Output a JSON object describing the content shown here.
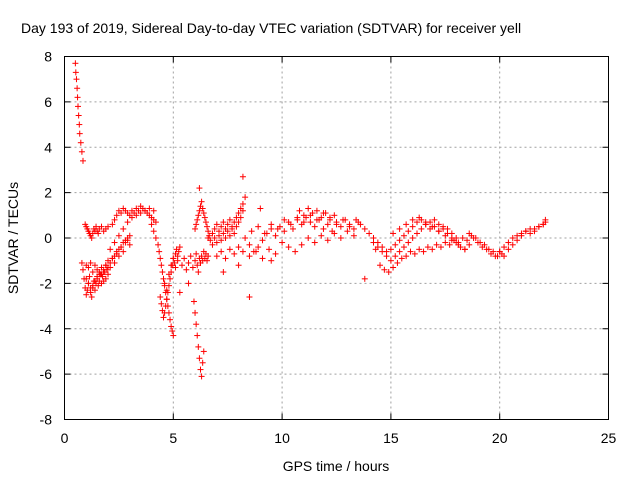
{
  "chart_data": {
    "type": "scatter",
    "title": "Day 193 of 2019, Sidereal Day-to-day VTEC variation (SDTVAR) for receiver yell",
    "xlabel": "GPS time / hours",
    "ylabel": "SDTVAR / TECUs",
    "xlim": [
      0,
      25
    ],
    "ylim": [
      -8,
      8
    ],
    "xticks": [
      "0",
      "5",
      "10",
      "15",
      "20",
      "25"
    ],
    "yticks": [
      "-8",
      "-6",
      "-4",
      "-2",
      "0",
      "2",
      "4",
      "6",
      "8"
    ],
    "grid": true,
    "marker": "plus",
    "marker_color": "#ff0000",
    "series": [
      {
        "name": "SDTVAR",
        "x": [
          0.5,
          0.52,
          0.55,
          0.58,
          0.6,
          0.62,
          0.65,
          0.68,
          0.7,
          0.75,
          0.8,
          0.85,
          0.8,
          0.85,
          0.9,
          0.95,
          1.0,
          1.05,
          1.1,
          1.15,
          1.2,
          1.25,
          1.3,
          1.35,
          1.4,
          1.45,
          1.5,
          1.55,
          1.6,
          1.65,
          1.7,
          1.75,
          1.8,
          1.85,
          1.9,
          1.95,
          2.0,
          1.0,
          1.1,
          1.2,
          1.3,
          1.4,
          1.5,
          1.6,
          1.7,
          1.8,
          1.9,
          2.0,
          2.1,
          2.2,
          2.3,
          2.4,
          2.5,
          2.6,
          2.7,
          2.8,
          2.9,
          3.0,
          1.0,
          1.1,
          1.2,
          1.3,
          1.4,
          1.5,
          1.6,
          1.7,
          1.8,
          1.9,
          2.0,
          2.1,
          2.2,
          2.3,
          2.4,
          2.5,
          2.6,
          2.7,
          2.8,
          2.9,
          3.0,
          0.95,
          1.0,
          1.05,
          1.1,
          1.15,
          1.2,
          1.25,
          1.3,
          1.35,
          1.4,
          1.45,
          1.5,
          1.55,
          1.6,
          1.7,
          1.8,
          1.9,
          2.0,
          2.2,
          2.3,
          2.4,
          2.5,
          2.6,
          2.7,
          2.8,
          2.9,
          3.0,
          3.1,
          3.2,
          3.3,
          3.4,
          3.5,
          3.6,
          3.7,
          3.8,
          3.9,
          4.0,
          4.1,
          4.2,
          2.1,
          2.3,
          2.5,
          2.7,
          2.9,
          3.1,
          3.3,
          3.5,
          3.7,
          3.9,
          4.1,
          4.0,
          4.1,
          4.2,
          4.3,
          4.35,
          4.4,
          4.45,
          4.5,
          4.55,
          4.6,
          4.65,
          4.7,
          4.75,
          4.8,
          4.85,
          4.9,
          4.95,
          5.0,
          4.4,
          4.45,
          4.5,
          4.55,
          4.6,
          4.65,
          4.7,
          4.75,
          4.8,
          4.85,
          4.9,
          4.95,
          5.0,
          5.05,
          5.1,
          5.15,
          5.2,
          5.25,
          5.3,
          4.6,
          4.7,
          4.8,
          4.9,
          5.0,
          5.1,
          5.2,
          5.4,
          5.5,
          5.6,
          5.7,
          5.8,
          5.9,
          6.0,
          6.05,
          6.1,
          6.15,
          6.2,
          6.25,
          6.3,
          6.35,
          6.4,
          6.45,
          6.5,
          6.55,
          6.6,
          5.95,
          6.0,
          6.05,
          6.1,
          6.15,
          6.2,
          6.25,
          6.3,
          6.35,
          6.4,
          6.0,
          6.05,
          6.1,
          6.15,
          6.2,
          6.25,
          6.3,
          6.35,
          6.4,
          6.45,
          6.5,
          6.55,
          6.6,
          6.65,
          6.7,
          6.8,
          6.9,
          7.0,
          7.1,
          7.2,
          7.3,
          7.4,
          7.5,
          7.6,
          7.7,
          7.8,
          7.9,
          8.0,
          8.1,
          8.2,
          8.3,
          6.8,
          6.9,
          7.0,
          7.1,
          7.2,
          7.3,
          7.4,
          7.5,
          7.6,
          7.7,
          7.8,
          7.9,
          8.0,
          8.1,
          8.2,
          7.0,
          7.2,
          7.4,
          7.6,
          7.8,
          8.0,
          8.2,
          8.3,
          8.5,
          8.7,
          8.9,
          9.1,
          9.3,
          9.5,
          9.7,
          9.9,
          10.1,
          10.3,
          10.5,
          10.7,
          10.9,
          11.1,
          11.3,
          11.5,
          11.7,
          11.9,
          12.1,
          12.3,
          12.5,
          12.7,
          12.9,
          13.1,
          13.3,
          13.5,
          8.5,
          8.8,
          9.1,
          9.4,
          9.7,
          10.0,
          10.3,
          10.6,
          10.9,
          11.2,
          11.5,
          11.8,
          12.1,
          12.4,
          12.7,
          13.0,
          13.3,
          8.6,
          8.9,
          9.2,
          9.5,
          9.8,
          10.1,
          10.4,
          10.7,
          11.0,
          11.3,
          11.6,
          11.9,
          12.2,
          12.5,
          12.8,
          13.1,
          10.8,
          11.0,
          11.2,
          11.4,
          11.6,
          11.8,
          12.0,
          12.2,
          12.4,
          13.4,
          13.6,
          13.8,
          14.0,
          14.2,
          14.4,
          14.6,
          14.8,
          15.0,
          15.2,
          15.4,
          15.6,
          15.8,
          16.0,
          16.2,
          16.4,
          16.6,
          16.8,
          17.0,
          17.2,
          17.4,
          17.6,
          17.8,
          18.0,
          18.2,
          18.4,
          18.6,
          14.2,
          14.4,
          14.6,
          14.8,
          15.0,
          15.2,
          15.4,
          15.6,
          15.8,
          16.0,
          16.2,
          16.4,
          16.6,
          16.8,
          17.0,
          17.2,
          17.4,
          17.6,
          17.8,
          18.0,
          14.5,
          14.7,
          14.9,
          15.1,
          15.3,
          15.5,
          15.7,
          15.9,
          16.1,
          16.3,
          16.5,
          16.7,
          16.9,
          17.1,
          17.3,
          17.5,
          17.7,
          17.9,
          18.1,
          18.3,
          18.5,
          18.7,
          18.9,
          19.1,
          19.3,
          19.5,
          19.7,
          19.9,
          20.1,
          15.1,
          15.4,
          15.7,
          16.0,
          16.3,
          16.6,
          16.9,
          17.2,
          17.5,
          17.8,
          18.1,
          18.4,
          18.6,
          18.8,
          19.0,
          19.2,
          19.4,
          19.6,
          19.8,
          20.0,
          20.2,
          20.4,
          20.6,
          20.8,
          21.0,
          21.2,
          21.4,
          21.6,
          21.8,
          22.0,
          22.1,
          20.0,
          20.2,
          20.4,
          20.6,
          20.8,
          21.0,
          21.2,
          21.4,
          21.6,
          21.8,
          22.0,
          22.1,
          8.2,
          8.5,
          9.0,
          13.8,
          14.3,
          5.3,
          5.7,
          6.2,
          6.6,
          7.3,
          8.0,
          9.5
        ],
        "y": [
          7.7,
          7.3,
          7.0,
          6.6,
          6.2,
          5.8,
          5.4,
          5.0,
          4.6,
          4.2,
          3.8,
          3.4,
          -1.1,
          -1.4,
          -1.8,
          -2.2,
          -2.5,
          -2.3,
          -2.0,
          -1.7,
          -2.4,
          -2.6,
          -2.2,
          -1.9,
          -2.3,
          -2.0,
          -1.8,
          -2.1,
          -1.9,
          -1.6,
          -2.0,
          -1.7,
          -1.9,
          -1.5,
          -1.8,
          -1.4,
          -1.6,
          -1.2,
          -1.3,
          -1.1,
          -1.5,
          -1.2,
          -1.4,
          -1.6,
          -1.3,
          -1.5,
          -1.2,
          -1.0,
          -1.3,
          -0.9,
          -1.1,
          -0.7,
          -0.8,
          -0.4,
          -0.6,
          -0.2,
          -0.1,
          0.1,
          -1.8,
          -2.0,
          -2.2,
          -2.1,
          -1.9,
          -1.7,
          -1.5,
          -1.6,
          -1.4,
          -1.2,
          -1.3,
          -1.1,
          -0.9,
          -0.8,
          -0.6,
          -0.5,
          -0.4,
          -0.2,
          -0.1,
          0.0,
          -0.3,
          0.6,
          0.5,
          0.4,
          0.3,
          0.2,
          0.1,
          0.0,
          0.2,
          0.4,
          0.3,
          0.5,
          0.3,
          0.2,
          0.4,
          0.5,
          0.3,
          0.4,
          0.5,
          0.6,
          0.8,
          1.0,
          1.2,
          1.1,
          1.3,
          1.2,
          1.1,
          1.0,
          1.2,
          1.1,
          1.3,
          1.2,
          1.4,
          1.3,
          1.2,
          1.1,
          1.0,
          0.9,
          0.8,
          0.7,
          -0.5,
          -0.2,
          0.1,
          0.4,
          0.7,
          0.9,
          1.0,
          1.1,
          1.2,
          1.3,
          1.2,
          0.6,
          0.3,
          0.0,
          -0.3,
          -0.6,
          -0.9,
          -1.2,
          -1.5,
          -1.8,
          -2.1,
          -2.4,
          -2.7,
          -3.0,
          -3.3,
          -3.6,
          -3.9,
          -4.1,
          -4.3,
          -2.6,
          -2.9,
          -3.2,
          -3.5,
          -3.3,
          -3.0,
          -2.7,
          -2.4,
          -2.1,
          -1.8,
          -1.5,
          -1.2,
          -0.9,
          -1.1,
          -0.7,
          -0.5,
          -0.8,
          -0.6,
          -0.4,
          -2.0,
          -2.3,
          -1.6,
          -1.2,
          -0.9,
          -1.3,
          -1.0,
          -1.2,
          -0.9,
          -1.4,
          -1.1,
          -0.8,
          -1.3,
          -1.0,
          -0.7,
          -1.2,
          -1.5,
          -0.9,
          -1.1,
          -0.8,
          -1.0,
          -0.6,
          -0.9,
          -0.7,
          -1.0,
          -0.8,
          -2.8,
          -3.3,
          -3.8,
          -4.3,
          -4.8,
          -5.3,
          -5.8,
          -6.1,
          -5.5,
          -5.0,
          0.4,
          0.6,
          0.8,
          1.0,
          1.2,
          1.4,
          1.6,
          1.3,
          1.1,
          0.9,
          0.7,
          0.5,
          0.3,
          0.1,
          -0.1,
          0.2,
          0.4,
          0.6,
          0.3,
          0.5,
          0.7,
          0.4,
          0.6,
          0.8,
          0.5,
          0.7,
          0.9,
          1.1,
          1.3,
          1.5,
          1.8,
          -0.3,
          0.0,
          -0.2,
          0.1,
          -0.1,
          0.2,
          0.0,
          0.3,
          0.1,
          0.4,
          0.2,
          0.5,
          0.7,
          0.9,
          1.2,
          -0.8,
          -0.6,
          -0.9,
          -0.5,
          -0.7,
          -0.4,
          -0.6,
          0.0,
          -0.3,
          -0.6,
          -0.4,
          -0.1,
          0.2,
          0.4,
          0.1,
          0.5,
          0.3,
          0.7,
          0.4,
          0.8,
          0.6,
          0.9,
          0.7,
          0.5,
          0.8,
          0.4,
          0.6,
          0.3,
          0.7,
          0.5,
          0.8,
          0.6,
          0.4,
          0.7,
          -0.8,
          -0.6,
          -0.9,
          -0.5,
          -0.7,
          -0.2,
          -0.4,
          -0.6,
          -0.3,
          0.0,
          -0.2,
          0.1,
          -0.1,
          0.2,
          0.0,
          0.3,
          0.1,
          0.3,
          0.5,
          0.2,
          0.6,
          0.4,
          0.8,
          0.6,
          0.9,
          0.7,
          1.0,
          0.8,
          1.1,
          0.9,
          0.6,
          0.8,
          0.5,
          1.2,
          1.0,
          1.3,
          1.1,
          1.2,
          0.9,
          1.1,
          0.8,
          1.0,
          0.8,
          0.6,
          0.4,
          0.2,
          0.0,
          -0.2,
          -0.4,
          -0.6,
          -0.5,
          -0.3,
          -0.1,
          0.1,
          0.3,
          0.5,
          0.7,
          0.8,
          0.6,
          0.4,
          0.5,
          0.3,
          0.4,
          0.2,
          0.0,
          -0.2,
          -0.4,
          -0.5,
          -0.3,
          -0.2,
          -0.4,
          -0.6,
          -0.8,
          -1.0,
          -0.8,
          -0.6,
          -0.4,
          -0.2,
          0.0,
          0.2,
          0.4,
          0.6,
          0.7,
          0.8,
          0.6,
          0.5,
          0.4,
          0.2,
          0.0,
          -1.2,
          -1.4,
          -1.5,
          -1.3,
          -1.1,
          -0.9,
          -0.8,
          -0.6,
          -0.7,
          -0.5,
          -0.6,
          -0.4,
          -0.5,
          -0.3,
          -0.4,
          -0.2,
          -0.3,
          -0.1,
          -0.2,
          0.0,
          -0.1,
          0.1,
          0.0,
          -0.2,
          -0.3,
          -0.5,
          -0.6,
          -0.8,
          -0.7,
          0.2,
          0.4,
          0.6,
          0.8,
          0.9,
          0.7,
          0.5,
          0.3,
          0.1,
          -0.1,
          -0.3,
          -0.5,
          0.2,
          0.0,
          -0.2,
          -0.4,
          -0.5,
          -0.7,
          -0.8,
          -0.6,
          -0.4,
          -0.2,
          0.0,
          0.1,
          0.2,
          0.3,
          0.4,
          0.3,
          0.5,
          0.6,
          0.8,
          -0.6,
          -0.8,
          -0.5,
          -0.3,
          -0.1,
          0.1,
          0.3,
          0.2,
          0.4,
          0.5,
          0.6,
          0.7,
          2.7,
          -2.6,
          1.3,
          -1.8,
          -0.5,
          -2.4,
          -2.0,
          2.2,
          0.0,
          -1.5,
          -1.2,
          -1.0
        ]
      }
    ]
  }
}
